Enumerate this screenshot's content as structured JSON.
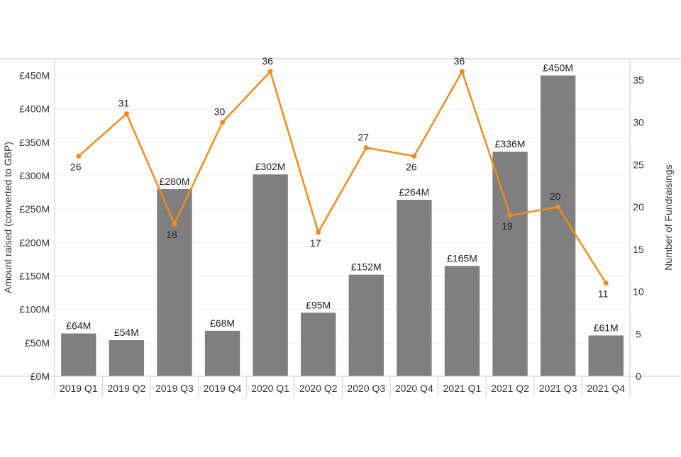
{
  "chart_data": {
    "type": "bar",
    "title": "",
    "categories": [
      "2019 Q1",
      "2019 Q2",
      "2019 Q3",
      "2019 Q4",
      "2020 Q1",
      "2020 Q2",
      "2020 Q3",
      "2020 Q4",
      "2021 Q1",
      "2021 Q2",
      "2021 Q3",
      "2021 Q4"
    ],
    "series": [
      {
        "type": "bar",
        "axis": "left",
        "color": "#7f7f7f",
        "values": [
          64,
          54,
          280,
          68,
          302,
          95,
          152,
          264,
          165,
          336,
          450,
          61
        ],
        "labels": [
          "£64M",
          "£54M",
          "£280M",
          "£68M",
          "£302M",
          "£95M",
          "£152M",
          "£264M",
          "£165M",
          "£336M",
          "£450M",
          "£61M"
        ]
      },
      {
        "type": "line",
        "axis": "right",
        "color": "#f28c1e",
        "values": [
          26,
          31,
          18,
          30,
          36,
          17,
          27,
          26,
          36,
          19,
          20,
          11
        ],
        "labels": [
          "26",
          "31",
          "18",
          "30",
          "36",
          "17",
          "27",
          "26",
          "36",
          "19",
          "20",
          "11"
        ]
      }
    ],
    "ylabel": "Amount raised (converted to GBP)",
    "y2label": "Number of Fundraisings",
    "ylim": [
      0,
      475
    ],
    "y2lim": [
      0,
      37.5
    ],
    "yticks": [
      0,
      50,
      100,
      150,
      200,
      250,
      300,
      350,
      400,
      450
    ],
    "ytick_labels": [
      "£0M",
      "£50M",
      "£100M",
      "£150M",
      "£200M",
      "£250M",
      "£300M",
      "£350M",
      "£400M",
      "£450M"
    ],
    "y2ticks": [
      0,
      5,
      10,
      15,
      20,
      25,
      30,
      35
    ],
    "y2tick_labels": [
      "0",
      "5",
      "10",
      "15",
      "20",
      "25",
      "30",
      "35"
    ],
    "grid": true,
    "legend": "none"
  }
}
